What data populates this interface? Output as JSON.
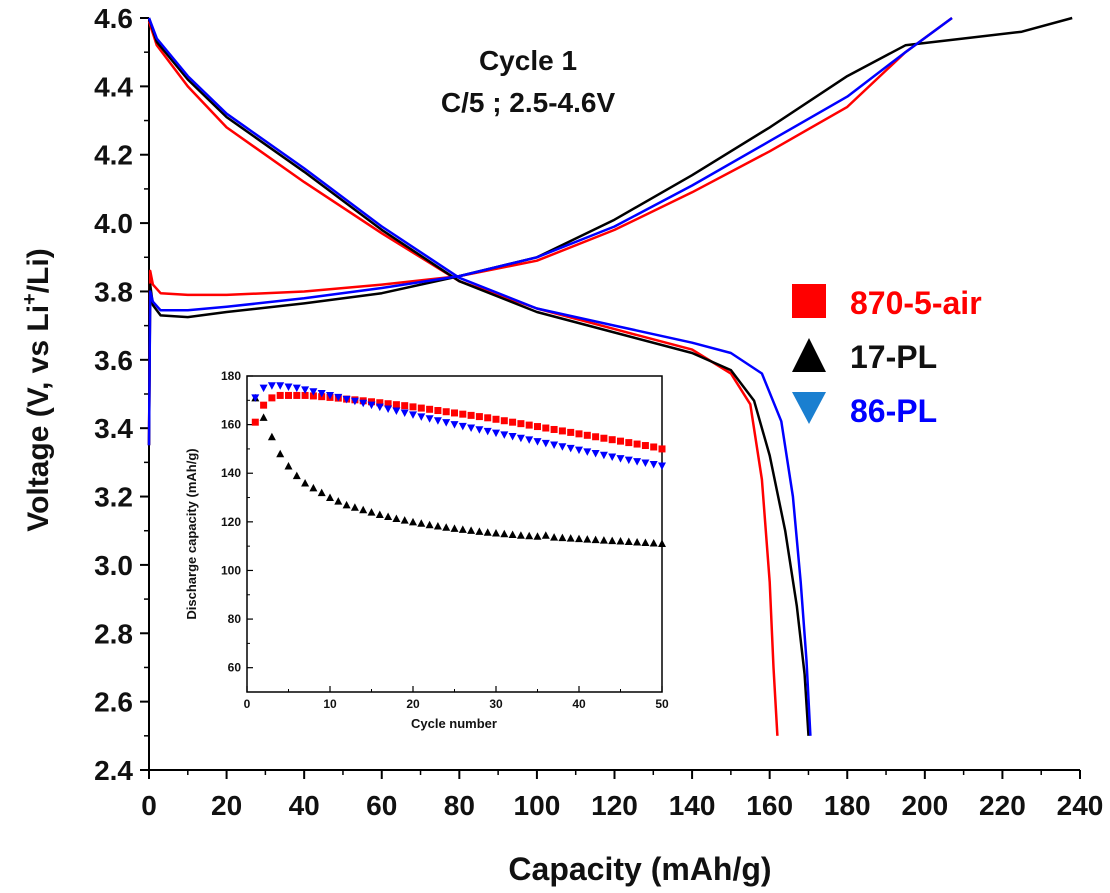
{
  "chart_data": [
    {
      "type": "line",
      "title": "Cycle 1",
      "subtitle": "C/5 ; 2.5-4.6V",
      "xlabel": "Capacity (mAh/g)",
      "ylabel_parts": [
        "Voltage (V, vs Li",
        "+",
        "/Li)"
      ],
      "xlim": [
        0,
        240
      ],
      "ylim": [
        2.4,
        4.6
      ],
      "xticks": [
        0,
        20,
        40,
        60,
        80,
        100,
        120,
        140,
        160,
        180,
        200,
        220,
        240
      ],
      "yticks": [
        2.4,
        2.6,
        2.8,
        3.0,
        3.2,
        3.4,
        3.6,
        3.8,
        4.0,
        4.2,
        4.4,
        4.6
      ],
      "legend_position": "right",
      "series": [
        {
          "name": "870-5-air",
          "color": "#ff0000",
          "marker": "square",
          "charge": [
            [
              0,
              3.35
            ],
            [
              0.3,
              3.86
            ],
            [
              1,
              3.82
            ],
            [
              3,
              3.795
            ],
            [
              10,
              3.79
            ],
            [
              20,
              3.79
            ],
            [
              40,
              3.8
            ],
            [
              60,
              3.82
            ],
            [
              80,
              3.845
            ],
            [
              100,
              3.89
            ],
            [
              120,
              3.98
            ],
            [
              140,
              4.09
            ],
            [
              160,
              4.21
            ],
            [
              180,
              4.34
            ],
            [
              195,
              4.5
            ],
            [
              207,
              4.6
            ]
          ],
          "discharge": [
            [
              0,
              4.59
            ],
            [
              2,
              4.52
            ],
            [
              10,
              4.4
            ],
            [
              20,
              4.28
            ],
            [
              40,
              4.12
            ],
            [
              60,
              3.97
            ],
            [
              80,
              3.83
            ],
            [
              100,
              3.75
            ],
            [
              120,
              3.69
            ],
            [
              140,
              3.63
            ],
            [
              150,
              3.56
            ],
            [
              155,
              3.47
            ],
            [
              158,
              3.25
            ],
            [
              160,
              2.95
            ],
            [
              161,
              2.7
            ],
            [
              162,
              2.5
            ]
          ]
        },
        {
          "name": "17-PL",
          "color": "#000000",
          "marker": "triangle-up",
          "charge": [
            [
              0,
              3.35
            ],
            [
              0.3,
              3.82
            ],
            [
              1,
              3.76
            ],
            [
              3,
              3.73
            ],
            [
              10,
              3.725
            ],
            [
              20,
              3.74
            ],
            [
              40,
              3.765
            ],
            [
              60,
              3.795
            ],
            [
              80,
              3.845
            ],
            [
              100,
              3.9
            ],
            [
              120,
              4.01
            ],
            [
              140,
              4.14
            ],
            [
              160,
              4.28
            ],
            [
              180,
              4.43
            ],
            [
              195,
              4.52
            ],
            [
              210,
              4.54
            ],
            [
              225,
              4.56
            ],
            [
              238,
              4.6
            ]
          ],
          "discharge": [
            [
              0,
              4.6
            ],
            [
              2,
              4.53
            ],
            [
              10,
              4.42
            ],
            [
              20,
              4.31
            ],
            [
              40,
              4.15
            ],
            [
              60,
              3.98
            ],
            [
              80,
              3.83
            ],
            [
              100,
              3.74
            ],
            [
              120,
              3.68
            ],
            [
              140,
              3.62
            ],
            [
              150,
              3.57
            ],
            [
              156,
              3.48
            ],
            [
              160,
              3.32
            ],
            [
              164,
              3.1
            ],
            [
              167,
              2.88
            ],
            [
              169,
              2.68
            ],
            [
              170,
              2.5
            ]
          ]
        },
        {
          "name": "86-PL",
          "color": "#0000ff",
          "marker": "triangle-down",
          "charge": [
            [
              0,
              3.35
            ],
            [
              0.3,
              3.8
            ],
            [
              1,
              3.77
            ],
            [
              3,
              3.745
            ],
            [
              10,
              3.745
            ],
            [
              20,
              3.755
            ],
            [
              40,
              3.78
            ],
            [
              60,
              3.81
            ],
            [
              80,
              3.845
            ],
            [
              100,
              3.9
            ],
            [
              120,
              3.99
            ],
            [
              140,
              4.11
            ],
            [
              160,
              4.24
            ],
            [
              180,
              4.37
            ],
            [
              195,
              4.5
            ],
            [
              207,
              4.6
            ]
          ],
          "discharge": [
            [
              0,
              4.6
            ],
            [
              2,
              4.54
            ],
            [
              10,
              4.43
            ],
            [
              20,
              4.32
            ],
            [
              40,
              4.16
            ],
            [
              60,
              3.99
            ],
            [
              80,
              3.84
            ],
            [
              100,
              3.75
            ],
            [
              120,
              3.7
            ],
            [
              140,
              3.65
            ],
            [
              150,
              3.62
            ],
            [
              158,
              3.56
            ],
            [
              163,
              3.42
            ],
            [
              166,
              3.2
            ],
            [
              168,
              2.95
            ],
            [
              169.5,
              2.72
            ],
            [
              170.5,
              2.5
            ]
          ]
        }
      ]
    },
    {
      "type": "scatter",
      "xlabel": "Cycle number",
      "ylabel": "Discharge capacity (mAh/g)",
      "xlim": [
        0,
        50
      ],
      "ylim": [
        50,
        180
      ],
      "xticks": [
        0,
        10,
        20,
        30,
        40,
        50
      ],
      "yticks": [
        60,
        80,
        100,
        120,
        140,
        160,
        180
      ],
      "series": [
        {
          "name": "870-5-air",
          "color": "#ff0000",
          "marker": "square",
          "x": [
            1,
            2,
            3,
            4,
            5,
            6,
            7,
            8,
            9,
            10,
            11,
            12,
            13,
            14,
            15,
            16,
            17,
            18,
            19,
            20,
            21,
            22,
            23,
            24,
            25,
            26,
            27,
            28,
            29,
            30,
            31,
            32,
            33,
            34,
            35,
            36,
            37,
            38,
            39,
            40,
            41,
            42,
            43,
            44,
            45,
            46,
            47,
            48,
            49,
            50
          ],
          "y": [
            161,
            168,
            171,
            172,
            172,
            172,
            172,
            171.8,
            171.5,
            171.2,
            170.9,
            170.5,
            170.2,
            169.8,
            169.4,
            169,
            168.6,
            168.2,
            167.8,
            167.3,
            166.8,
            166.3,
            165.8,
            165.3,
            164.8,
            164.3,
            163.8,
            163.3,
            162.8,
            162.2,
            161.6,
            161,
            160.4,
            159.8,
            159.2,
            158.6,
            158,
            157.4,
            156.8,
            156.2,
            155.6,
            155,
            154.4,
            153.8,
            153.2,
            152.6,
            152,
            151.4,
            150.8,
            150
          ]
        },
        {
          "name": "17-PL",
          "color": "#000000",
          "marker": "triangle-up",
          "x": [
            1,
            2,
            3,
            4,
            5,
            6,
            7,
            8,
            9,
            10,
            11,
            12,
            13,
            14,
            15,
            16,
            17,
            18,
            19,
            20,
            21,
            22,
            23,
            24,
            25,
            26,
            27,
            28,
            29,
            30,
            31,
            32,
            33,
            34,
            35,
            36,
            37,
            38,
            39,
            40,
            41,
            42,
            43,
            44,
            45,
            46,
            47,
            48,
            49,
            50
          ],
          "y": [
            171,
            163,
            155,
            148,
            143,
            139,
            136,
            134,
            132,
            130,
            128.5,
            127,
            126,
            125,
            124,
            123,
            122.2,
            121.4,
            120.7,
            120,
            119.4,
            118.8,
            118.3,
            117.8,
            117.3,
            116.9,
            116.5,
            116.1,
            115.7,
            115.4,
            115.1,
            114.8,
            114.5,
            114.3,
            114.1,
            114.5,
            113.7,
            113.5,
            113.3,
            113.1,
            112.9,
            112.7,
            112.5,
            112.3,
            112.1,
            111.9,
            111.7,
            111.5,
            111.3,
            111.1
          ]
        },
        {
          "name": "86-PL",
          "color": "#0000ff",
          "marker": "triangle-down",
          "x": [
            1,
            2,
            3,
            4,
            5,
            6,
            7,
            8,
            9,
            10,
            11,
            12,
            13,
            14,
            15,
            16,
            17,
            18,
            19,
            20,
            21,
            22,
            23,
            24,
            25,
            26,
            27,
            28,
            29,
            30,
            31,
            32,
            33,
            34,
            35,
            36,
            37,
            38,
            39,
            40,
            41,
            42,
            43,
            44,
            45,
            46,
            47,
            48,
            49,
            50
          ],
          "y": [
            171,
            175,
            176,
            176,
            175.5,
            175,
            174.3,
            173.5,
            172.8,
            172,
            171.2,
            170.4,
            169.6,
            168.8,
            168,
            167.2,
            166.4,
            165.6,
            164.8,
            164,
            163.2,
            162.4,
            161.6,
            160.8,
            160,
            159.3,
            158.6,
            157.9,
            157.2,
            156.5,
            155.8,
            155.1,
            154.4,
            153.7,
            153,
            152.3,
            151.6,
            150.9,
            150.2,
            149.5,
            148.8,
            148.1,
            147.4,
            146.7,
            146,
            145.4,
            144.8,
            144.2,
            143.6,
            143
          ]
        }
      ]
    }
  ]
}
